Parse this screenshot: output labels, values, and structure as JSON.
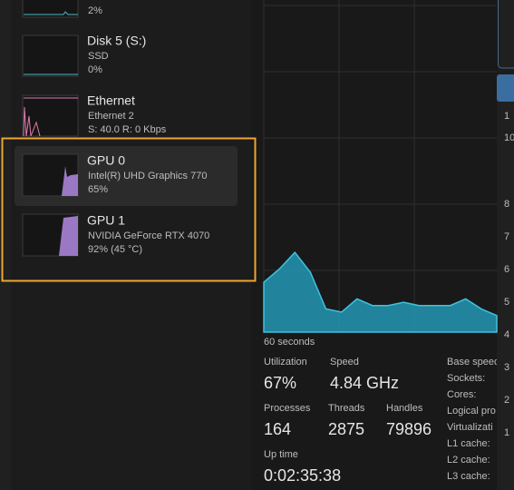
{
  "sidebar": {
    "items": [
      {
        "value": "2%"
      },
      {
        "title": "Disk 5 (S:)",
        "subtitle": "SSD",
        "value": "0%"
      },
      {
        "title": "Ethernet",
        "subtitle": "Ethernet 2",
        "value": "S: 40.0 R: 0 Kbps"
      },
      {
        "title": "GPU 0",
        "subtitle": "Intel(R) UHD Graphics 770",
        "value": "65%"
      },
      {
        "title": "GPU 1",
        "subtitle": "NVIDIA GeForce RTX 4070",
        "value": "92% (45 °C)"
      }
    ]
  },
  "graph": {
    "ylim": [
      0,
      100
    ],
    "values": [
      15,
      19,
      24,
      18,
      7,
      6,
      10,
      8,
      8,
      9,
      8,
      8,
      8,
      10,
      7,
      5
    ],
    "time_label": "60 seconds"
  },
  "stats": [
    {
      "label": "Utilization",
      "value": "67%"
    },
    {
      "label": "Speed",
      "value": "4.84 GHz"
    },
    {
      "label": "Processes",
      "value": "164"
    },
    {
      "label": "Threads",
      "value": "2875"
    },
    {
      "label": "Handles",
      "value": "79896"
    },
    {
      "label": "Up time",
      "value": "0:02:35:38"
    }
  ],
  "details": [
    "Base speed",
    "Sockets:",
    "Cores:",
    "Logical pro",
    "Virtualizati",
    "L1 cache:",
    "L2 cache:",
    "L3 cache:"
  ],
  "right_labels": [
    "1",
    "10",
    "8",
    "7",
    "6",
    "5",
    "4",
    "3",
    "2",
    "1"
  ]
}
